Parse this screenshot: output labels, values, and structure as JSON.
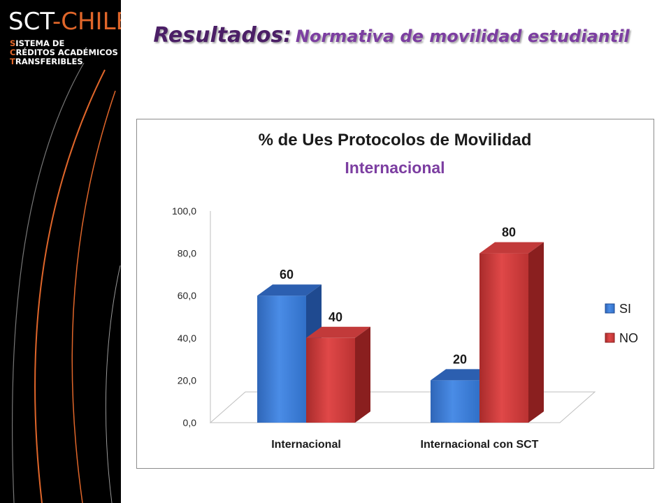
{
  "logo": {
    "brand_a": "SCT",
    "brand_b": "-CHILE",
    "line1_cap": "S",
    "line1_rest": "ISTEMA DE",
    "line2_cap": "C",
    "line2_rest": "RÉDITOS ACADÉMICOS",
    "line3_cap": "T",
    "line3_rest": "RANSFERIBLES"
  },
  "slide": {
    "title_lead": "Resultados:",
    "title_rest": "Normativa de movilidad estudiantil"
  },
  "colors": {
    "blue": "#3b7dd8",
    "red": "#d13b3b",
    "title_purple": "#7c3ea1",
    "orange_accent": "#e0662a"
  },
  "chart_data": {
    "type": "bar",
    "title": "% de Ues Protocolos de Movilidad",
    "subtitle": "Internacional",
    "categories": [
      "Internacional",
      "Internacional con SCT"
    ],
    "series": [
      {
        "name": "SI",
        "values": [
          60,
          20
        ],
        "labels": [
          "60",
          "20"
        ],
        "color": "#3b7dd8"
      },
      {
        "name": "NO",
        "values": [
          40,
          80
        ],
        "labels": [
          "40",
          "80"
        ],
        "color": "#d13b3b"
      }
    ],
    "ylim": [
      0,
      100
    ],
    "yticks": [
      "0,0",
      "20,0",
      "40,0",
      "60,0",
      "80,0",
      "100,0"
    ],
    "legend": "right",
    "grid": false,
    "style": "3d"
  }
}
